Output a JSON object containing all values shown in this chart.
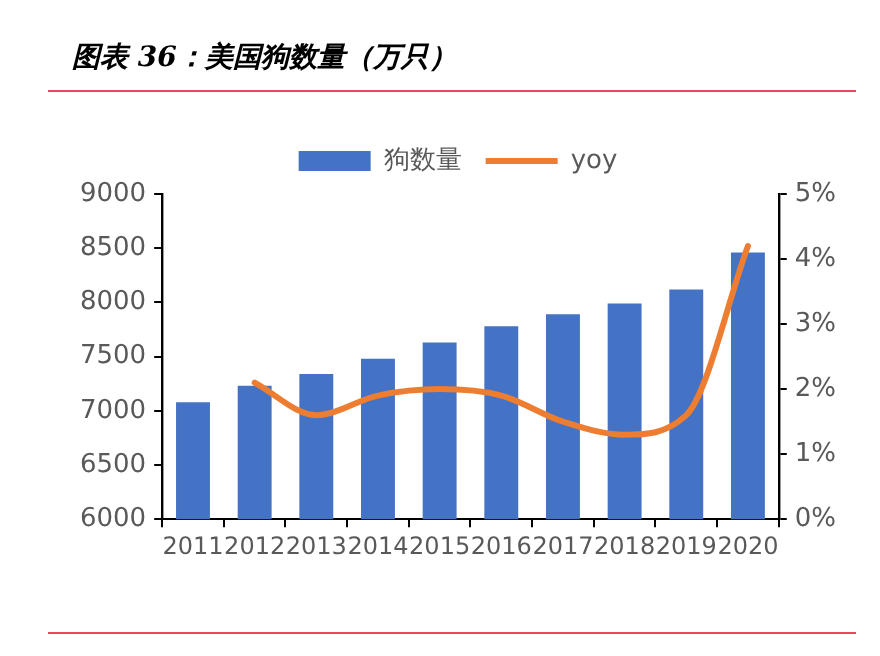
{
  "chart_data": {
    "type": "bar",
    "title": "图表 36：美国狗数量（万只）",
    "categories": [
      "2011",
      "2012",
      "2013",
      "2014",
      "2015",
      "2016",
      "2017",
      "2018",
      "2019",
      "2020"
    ],
    "series": [
      {
        "name": "狗数量",
        "color": "#4472c4",
        "values": [
          7080,
          7230,
          7340,
          7480,
          7630,
          7780,
          7890,
          7990,
          8120,
          8460
        ]
      },
      {
        "name": "yoy",
        "type": "line",
        "axis": "y2",
        "color": "#ed7d31",
        "values": [
          null,
          2.1,
          1.6,
          1.9,
          2.0,
          1.9,
          1.5,
          1.3,
          1.6,
          4.2
        ]
      }
    ],
    "ylim": [
      6000,
      9000
    ],
    "yticks": [
      6000,
      6500,
      7000,
      7500,
      8000,
      8500,
      9000
    ],
    "y2lim": [
      0,
      5
    ],
    "y2ticks": [
      {
        "value": 0,
        "label": "0%"
      },
      {
        "value": 1,
        "label": "1%"
      },
      {
        "value": 2,
        "label": "2%"
      },
      {
        "value": 3,
        "label": "3%"
      },
      {
        "value": 4,
        "label": "4%"
      },
      {
        "value": 5,
        "label": "5%"
      }
    ],
    "grid": false,
    "legend": "top",
    "marker": "none",
    "line_style": "solid"
  }
}
